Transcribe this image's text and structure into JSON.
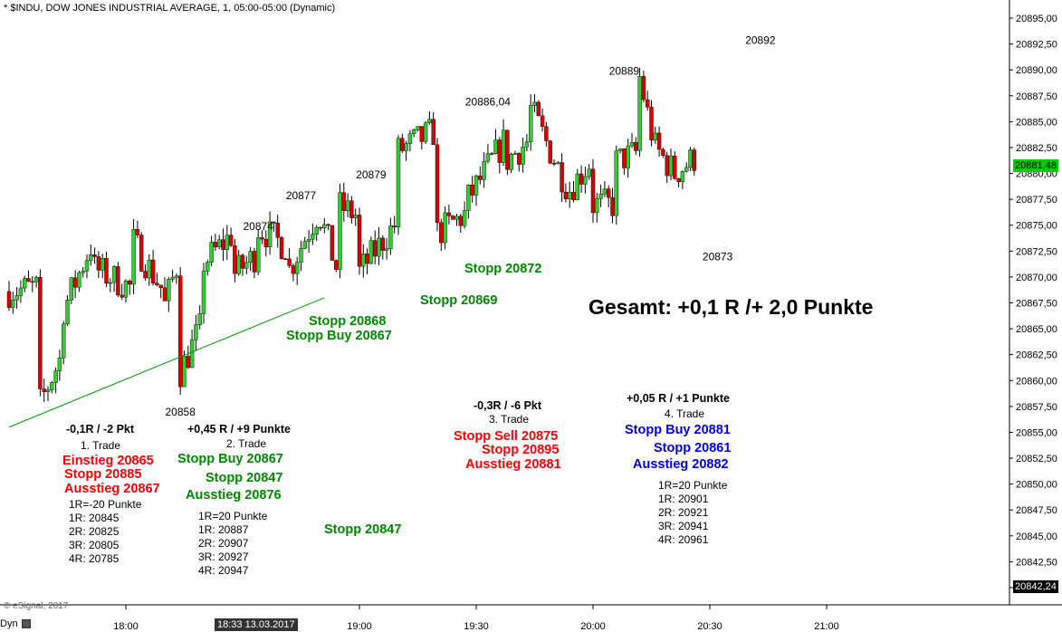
{
  "header": {
    "title": "* $INDU, DOW JONES INDUSTRIAL AVERAGE, 1, 05:00-05:00 (Dynamic)"
  },
  "footer": {
    "copyright": "© eSignal, 2017",
    "dyn_label": "Dyn"
  },
  "colors": {
    "up": "#33cc33",
    "down": "#dd0000",
    "trendline": "#009900",
    "last_price_tag": "#00cc00",
    "crosshair_tag": "#000000"
  },
  "chart_data": {
    "type": "candlestick",
    "symbol": "$INDU",
    "interval": "1",
    "ylim": [
      20840,
      20897
    ],
    "y_ticks": [
      "20895,00",
      "20892,50",
      "20890,00",
      "20887,50",
      "20885,00",
      "20882,50",
      "20880,00",
      "20877,50",
      "20875,00",
      "20872,50",
      "20870,00",
      "20867,50",
      "20865,00",
      "20862,50",
      "20860,00",
      "20857,50",
      "20855,00",
      "20852,50",
      "20850,00",
      "20847,50",
      "20845,00",
      "20842,50",
      "20840,00"
    ],
    "x_ticks": [
      {
        "label": "18:00",
        "minutes": 1080
      },
      {
        "label": "19:00",
        "minutes": 1140
      },
      {
        "label": "19:30",
        "minutes": 1170
      },
      {
        "label": "20:00",
        "minutes": 1200
      },
      {
        "label": "20:30",
        "minutes": 1230
      },
      {
        "label": "21:00",
        "minutes": 1260
      }
    ],
    "crosshair_time": "18:33 13.03.2017",
    "last_price": "20881,48",
    "crosshair_price": "20842,24",
    "trendline": {
      "from": {
        "time_minutes": 1050,
        "price": 20855.5
      },
      "to": {
        "time_minutes": 1131,
        "price": 20868.0
      }
    },
    "price_labels": [
      {
        "text": "20858",
        "time_minutes": 1094,
        "price": 20858
      },
      {
        "text": "20874",
        "time_minutes": 1114,
        "price": 20874
      },
      {
        "text": "20877",
        "time_minutes": 1125,
        "price": 20877
      },
      {
        "text": "20879",
        "time_minutes": 1143,
        "price": 20879
      },
      {
        "text": "20886,04",
        "time_minutes": 1173,
        "price": 20886.04
      },
      {
        "text": "20889",
        "time_minutes": 1208,
        "price": 20889
      },
      {
        "text": "20873",
        "time_minutes": 1232,
        "price": 20873
      },
      {
        "text": "20892",
        "time_minutes": 1243,
        "price": 20892
      }
    ],
    "anchors": [
      {
        "price": 20868.6,
        "close": 20869,
        "start": 1050,
        "end": 1058
      },
      {
        "price": 20857,
        "close": 20862,
        "start": 1058,
        "end": 1064
      },
      {
        "price": 20866,
        "close": 20873,
        "start": 1064,
        "end": 1072
      },
      {
        "price": 20871,
        "close": 20869,
        "start": 1072,
        "end": 1082
      },
      {
        "price": 20874,
        "close": 20869,
        "start": 1082,
        "end": 1090
      },
      {
        "price": 20866,
        "close": 20871,
        "start": 1090,
        "end": 1094
      },
      {
        "price": 20860,
        "close": 20865,
        "start": 1094,
        "end": 1100
      },
      {
        "price": 20871,
        "close": 20874,
        "start": 1100,
        "end": 1108
      },
      {
        "price": 20870,
        "close": 20872,
        "start": 1108,
        "end": 1114
      },
      {
        "price": 20875,
        "close": 20873,
        "start": 1114,
        "end": 1122
      },
      {
        "price": 20870,
        "close": 20876,
        "start": 1122,
        "end": 1130
      },
      {
        "price": 20877,
        "close": 20871,
        "start": 1130,
        "end": 1135
      },
      {
        "price": 20877,
        "close": 20876,
        "start": 1135,
        "end": 1140
      },
      {
        "price": 20870,
        "close": 20875,
        "start": 1140,
        "end": 1150
      },
      {
        "price": 20882,
        "close": 20884,
        "start": 1150,
        "end": 1160
      },
      {
        "price": 20874,
        "close": 20876,
        "start": 1160,
        "end": 1168
      },
      {
        "price": 20877,
        "close": 20883,
        "start": 1168,
        "end": 1178
      },
      {
        "price": 20881,
        "close": 20883,
        "start": 1178,
        "end": 1184
      },
      {
        "price": 20887,
        "close": 20879,
        "start": 1184,
        "end": 1194
      },
      {
        "price": 20878,
        "close": 20881,
        "start": 1194,
        "end": 1200
      },
      {
        "price": 20877,
        "close": 20877,
        "start": 1200,
        "end": 1206
      },
      {
        "price": 20881,
        "close": 20882,
        "start": 1206,
        "end": 1212
      },
      {
        "price": 20891,
        "close": 20884,
        "start": 1212,
        "end": 1216
      },
      {
        "price": 20883,
        "close": 20880,
        "start": 1216,
        "end": 1222
      },
      {
        "price": 20880,
        "close": 20881.48,
        "start": 1222,
        "end": 1227
      }
    ],
    "visible_time_range": [
      1050,
      1268
    ]
  },
  "annotations": {
    "gesamt": "Gesamt: +0,1 R /+ 2,0 Punkte",
    "trade1": {
      "result": "-0,1R / -2 Pkt",
      "name": "1. Trade",
      "einstieg": "Einstieg 20865",
      "stopp": "Stopp 20885",
      "ausstieg": "Ausstieg 20867",
      "r_lines": [
        "1R=-20 Punkte",
        "1R: 20845",
        "2R: 20825",
        "3R: 20805",
        "4R: 20785"
      ]
    },
    "trade2": {
      "result": "+0,45 R / +9 Punkte",
      "name": "2. Trade",
      "stopp_buy": "Stopp Buy 20867",
      "stopp": "Stopp 20847",
      "ausstieg": "Ausstieg 20876",
      "r_lines": [
        "1R=20 Punkte",
        "1R: 20887",
        "2R: 20907",
        "3R: 20927",
        "4R: 20947"
      ]
    },
    "trade2_extra": {
      "stopp_20868": "Stopp 20868",
      "stopp_buy_20867": "Stopp Buy 20867",
      "stopp_20869": "Stopp 20869",
      "stopp_20872": "Stopp 20872",
      "stopp_20847": "Stopp 20847"
    },
    "trade3": {
      "result": "-0,3R / -6 Pkt",
      "name": "3. Trade",
      "stopp_sell": "Stopp Sell 20875",
      "stopp": "Stopp 20895",
      "ausstieg": "Ausstieg 20881"
    },
    "trade4": {
      "result": "+0,05 R / +1 Punkte",
      "name": "4. Trade",
      "stopp_buy": "Stopp Buy 20881",
      "stopp": "Stopp 20861",
      "ausstieg": "Ausstieg 20882",
      "r_lines": [
        "1R=20 Punkte",
        "1R: 20901",
        "2R: 20921",
        "3R: 20941",
        "4R: 20961"
      ]
    }
  }
}
